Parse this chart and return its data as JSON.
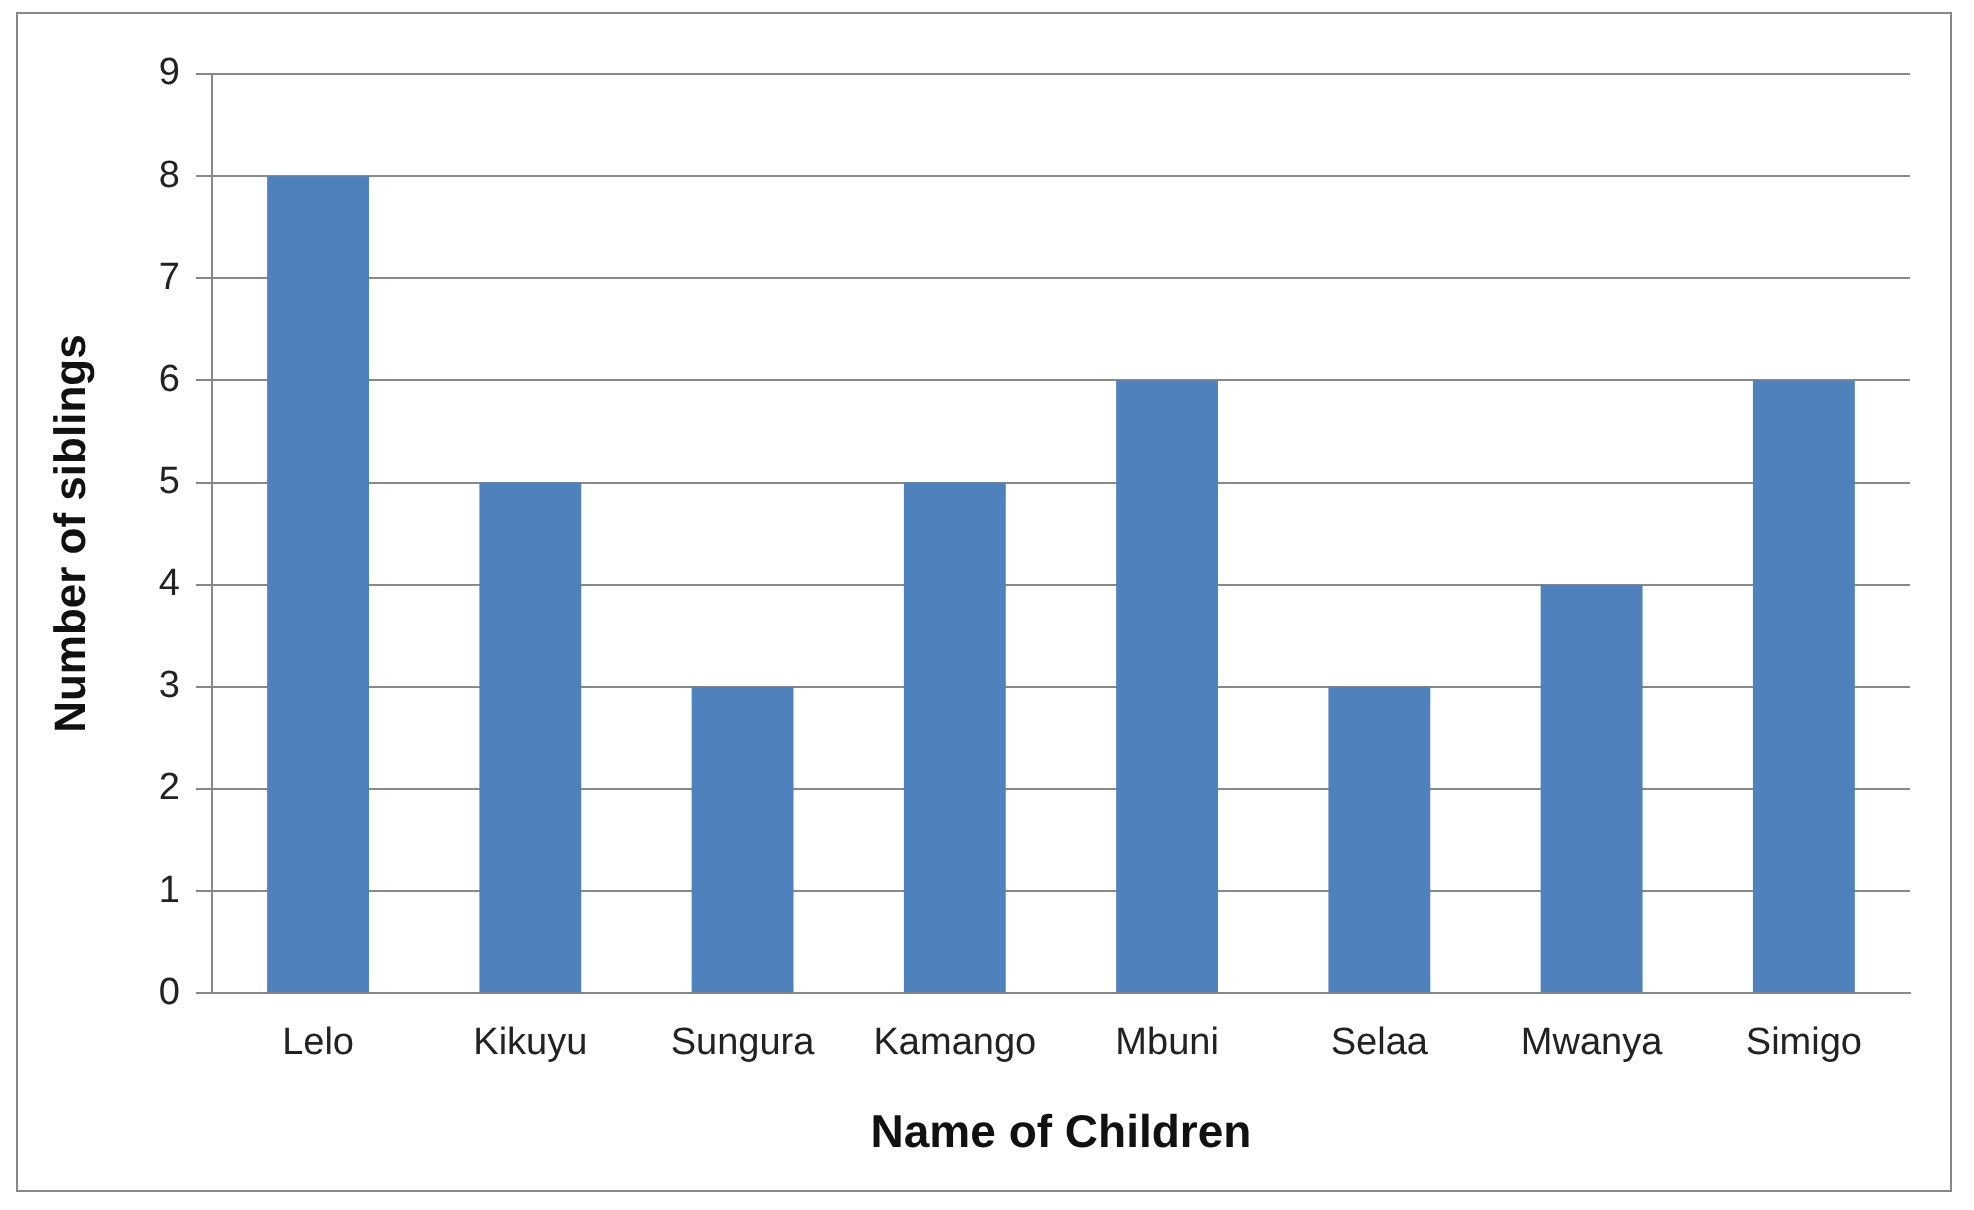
{
  "chart_data": {
    "type": "bar",
    "xlabel": "Name of Children",
    "ylabel": "Number of siblings",
    "categories": [
      "Lelo",
      "Kikuyu",
      "Sungura",
      "Kamango",
      "Mbuni",
      "Selaa",
      "Mwanya",
      "Simigo"
    ],
    "values": [
      8,
      5,
      3,
      5,
      6,
      3,
      4,
      6
    ],
    "color": "#4f81bd",
    "ylim": [
      0,
      9
    ],
    "yticks": [
      0,
      1,
      2,
      3,
      4,
      5,
      6,
      7,
      8,
      9
    ],
    "grid": "y",
    "legend": false
  }
}
